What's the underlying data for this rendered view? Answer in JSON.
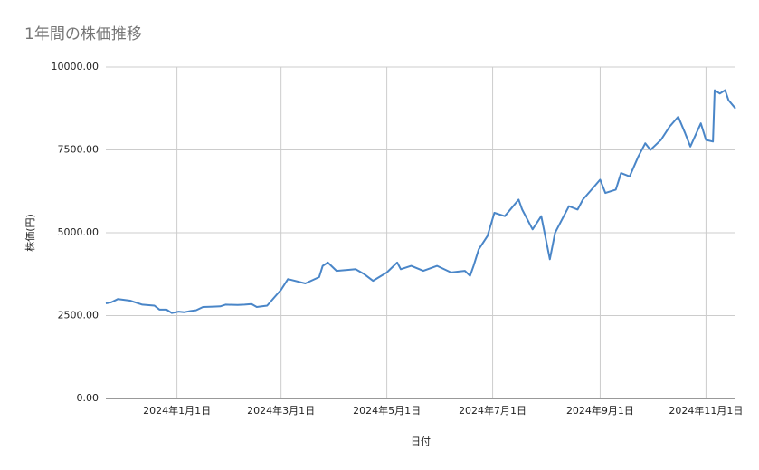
{
  "chart_data": {
    "type": "line",
    "title": "1年間の株価推移",
    "x_label": "日付",
    "y_label": "株価(円)",
    "x": [
      "2023-11-21",
      "2023-11-24",
      "2023-11-28",
      "2023-12-05",
      "2023-12-12",
      "2023-12-19",
      "2023-12-22",
      "2023-12-26",
      "2023-12-29",
      "2024-01-02",
      "2024-01-05",
      "2024-01-09",
      "2024-01-12",
      "2024-01-16",
      "2024-01-22",
      "2024-01-26",
      "2024-01-29",
      "2024-02-05",
      "2024-02-09",
      "2024-02-13",
      "2024-02-16",
      "2024-02-22",
      "2024-02-27",
      "2024-03-01",
      "2024-03-05",
      "2024-03-15",
      "2024-03-23",
      "2024-03-25",
      "2024-03-28",
      "2024-04-02",
      "2024-04-13",
      "2024-04-18",
      "2024-04-23",
      "2024-05-01",
      "2024-05-07",
      "2024-05-09",
      "2024-05-15",
      "2024-05-22",
      "2024-05-30",
      "2024-06-07",
      "2024-06-15",
      "2024-06-18",
      "2024-06-20",
      "2024-06-23",
      "2024-06-28",
      "2024-07-02",
      "2024-07-08",
      "2024-07-16",
      "2024-07-18",
      "2024-07-24",
      "2024-07-29",
      "2024-08-03",
      "2024-08-06",
      "2024-08-14",
      "2024-08-19",
      "2024-08-22",
      "2024-08-27",
      "2024-09-01",
      "2024-09-04",
      "2024-09-10",
      "2024-09-13",
      "2024-09-18",
      "2024-09-23",
      "2024-09-27",
      "2024-09-30",
      "2024-10-02",
      "2024-10-06",
      "2024-10-11",
      "2024-10-16",
      "2024-10-20",
      "2024-10-23",
      "2024-10-29",
      "2024-11-01",
      "2024-11-05",
      "2024-11-06",
      "2024-11-09",
      "2024-11-12",
      "2024-11-14",
      "2024-11-18"
    ],
    "series": [
      {
        "name": "株価",
        "color": "#4a86c8",
        "values": [
          2870,
          2900,
          3000,
          2950,
          2830,
          2800,
          2680,
          2680,
          2580,
          2620,
          2600,
          2640,
          2660,
          2760,
          2770,
          2780,
          2830,
          2820,
          2830,
          2850,
          2760,
          2800,
          3100,
          3280,
          3600,
          3470,
          3660,
          4000,
          4100,
          3850,
          3900,
          3750,
          3550,
          3800,
          4100,
          3900,
          4000,
          3850,
          4000,
          3800,
          3850,
          3700,
          4000,
          4500,
          4900,
          5600,
          5500,
          6000,
          5700,
          5100,
          5500,
          4200,
          5000,
          5800,
          5700,
          6000,
          6300,
          6600,
          6200,
          6300,
          6800,
          6700,
          7300,
          7700,
          7500,
          7600,
          7800,
          8200,
          8500,
          8000,
          7600,
          8300,
          7800,
          7750,
          9300,
          9200,
          9300,
          9000,
          8750
        ]
      }
    ],
    "xlim": [
      "2023-11-21",
      "2024-11-18"
    ],
    "xticks": [
      {
        "value": "2024-01-01",
        "label": "2024年1月1日"
      },
      {
        "value": "2024-03-01",
        "label": "2024年3月1日"
      },
      {
        "value": "2024-05-01",
        "label": "2024年5月1日"
      },
      {
        "value": "2024-07-01",
        "label": "2024年7月1日"
      },
      {
        "value": "2024-09-01",
        "label": "2024年9月1日"
      },
      {
        "value": "2024-11-01",
        "label": "2024年11月1日"
      }
    ],
    "ylim": [
      0,
      10000
    ],
    "yticks": [
      {
        "value": 0,
        "label": "0.00"
      },
      {
        "value": 2500,
        "label": "2500.00"
      },
      {
        "value": 5000,
        "label": "5000.00"
      },
      {
        "value": 7500,
        "label": "7500.00"
      },
      {
        "value": 10000,
        "label": "10000.00"
      }
    ],
    "grid": true
  }
}
